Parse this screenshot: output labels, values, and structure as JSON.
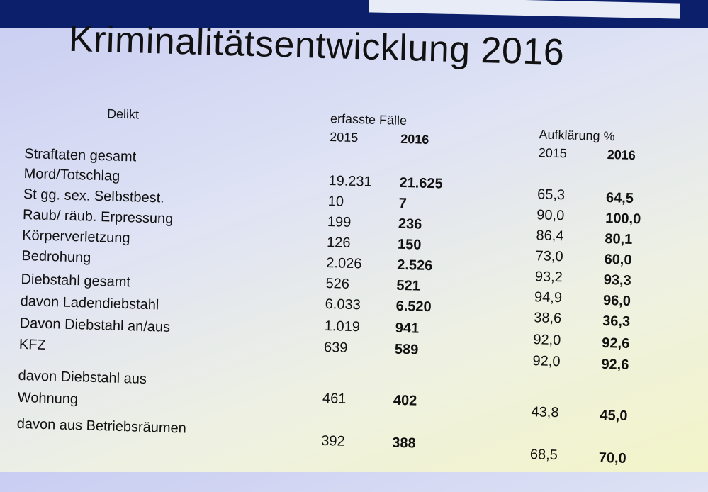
{
  "title": "Kriminalitätsentwicklung 2016",
  "headers": {
    "delikt": "Delikt",
    "erfasste_faelle": "erfasste Fälle",
    "aufklaerung": "Aufklärung %",
    "y2015_a": "2015",
    "y2016_a": "2016",
    "y2015_b": "2015",
    "y2016_b": "2016"
  },
  "rows": [
    {
      "label": "Straftaten gesamt",
      "f2015": "19.231",
      "f2016": "21.625",
      "a2015": "65,3",
      "a2016": "64,5"
    },
    {
      "label": "Mord/Totschlag",
      "f2015": "10",
      "f2016": "7",
      "a2015": "90,0",
      "a2016": "100,0"
    },
    {
      "label": "St gg. sex. Selbstbest.",
      "f2015": "199",
      "f2016": "236",
      "a2015": "86,4",
      "a2016": "80,1"
    },
    {
      "label": "Raub/ räub. Erpressung",
      "f2015": "126",
      "f2016": "150",
      "a2015": "73,0",
      "a2016": "60,0"
    },
    {
      "label": "Körperverletzung",
      "f2015": "2.026",
      "f2016": "2.526",
      "a2015": "93,2",
      "a2016": "93,3"
    },
    {
      "label": "Bedrohung",
      "f2015": "526",
      "f2016": "521",
      "a2015": "94,9",
      "a2016": "96,0"
    },
    {
      "label": "Diebstahl gesamt",
      "f2015": "6.033",
      "f2016": "6.520",
      "a2015": "38,6",
      "a2016": "36,3"
    },
    {
      "label": "davon Ladendiebstahl",
      "f2015": "1.019",
      "f2016": "941",
      "a2015": "92,0",
      "a2016": "92,6"
    },
    {
      "label": "Davon Diebstahl an/aus",
      "f2015": "639",
      "f2016": "589",
      "a2015": "92,0",
      "a2016": "92,6"
    },
    {
      "label": "KFZ",
      "f2015": "",
      "f2016": "",
      "a2015": "",
      "a2016": ""
    },
    {
      "label": "davon Diebstahl aus",
      "f2015": "461",
      "f2016": "402",
      "a2015": "43,8",
      "a2016": "45,0"
    },
    {
      "label": "Wohnung",
      "f2015": "",
      "f2016": "",
      "a2015": "",
      "a2016": ""
    },
    {
      "label": "davon aus Betriebsräumen",
      "f2015": "392",
      "f2016": "388",
      "a2015": "68,5",
      "a2016": "70,0"
    }
  ]
}
